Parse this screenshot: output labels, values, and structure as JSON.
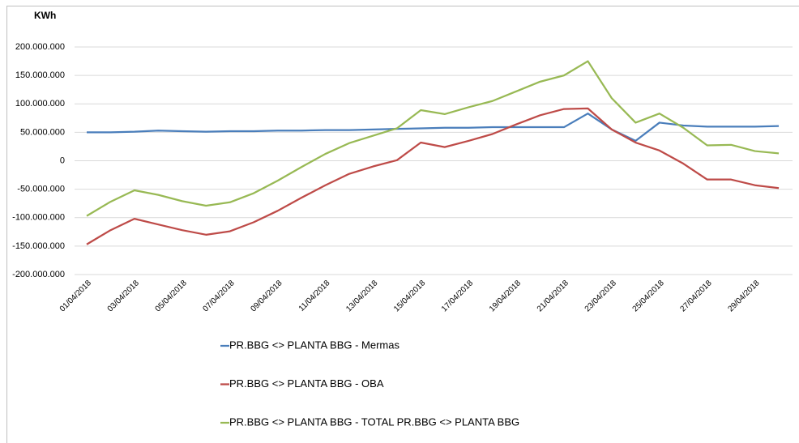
{
  "chart_data": {
    "type": "line",
    "y_label": "KWh",
    "categories": [
      "01/04/2018",
      null,
      "03/04/2018",
      null,
      "05/04/2018",
      null,
      "07/04/2018",
      null,
      "09/04/2018",
      null,
      "11/04/2018",
      null,
      "13/04/2018",
      null,
      "15/04/2018",
      null,
      "17/04/2018",
      null,
      "19/04/2018",
      null,
      "21/04/2018",
      null,
      "23/04/2018",
      null,
      "25/04/2018",
      null,
      "27/04/2018",
      null,
      "29/04/2018",
      null
    ],
    "series": [
      {
        "name": "PR.BBG <> PLANTA BBG - Mermas",
        "color": "#4a7ebb",
        "values": [
          50000000,
          50000000,
          51000000,
          53000000,
          52000000,
          51000000,
          52000000,
          52000000,
          53000000,
          53000000,
          54000000,
          54000000,
          55000000,
          56000000,
          57000000,
          58000000,
          58000000,
          59000000,
          59000000,
          59000000,
          59000000,
          83000000,
          55000000,
          35000000,
          67000000,
          62000000,
          60000000,
          60000000,
          60000000,
          61000000
        ]
      },
      {
        "name": "PR.BBG <> PLANTA BBG - OBA",
        "color": "#be4b48",
        "values": [
          -147000000,
          -122000000,
          -102000000,
          -112000000,
          -122000000,
          -130000000,
          -124000000,
          -108000000,
          -88000000,
          -65000000,
          -43000000,
          -23000000,
          -10000000,
          1000000,
          32000000,
          24000000,
          35000000,
          47000000,
          64000000,
          80000000,
          91000000,
          92000000,
          55000000,
          32000000,
          18000000,
          -5000000,
          -33000000,
          -33000000,
          -43000000,
          -48000000
        ]
      },
      {
        "name": "PR.BBG <> PLANTA BBG - TOTAL PR.BBG <> PLANTA BBG",
        "color": "#98b954",
        "values": [
          -97000000,
          -72000000,
          -52000000,
          -60000000,
          -71000000,
          -79000000,
          -73000000,
          -57000000,
          -35000000,
          -11000000,
          12000000,
          31000000,
          44000000,
          57000000,
          89000000,
          82000000,
          94000000,
          105000000,
          122000000,
          139000000,
          150000000,
          175000000,
          110000000,
          67000000,
          83000000,
          58000000,
          27000000,
          28000000,
          17000000,
          13000000
        ]
      }
    ],
    "ylim": [
      -200000000,
      200000000
    ],
    "yticks": [
      {
        "value": -200000000,
        "label": "-200.000.000"
      },
      {
        "value": -150000000,
        "label": "-150.000.000"
      },
      {
        "value": -100000000,
        "label": "-100.000.000"
      },
      {
        "value": -50000000,
        "label": "-50.000.000"
      },
      0,
      {
        "value": 50000000,
        "label": "50.000.000"
      },
      {
        "value": 100000000,
        "label": "100.000.000"
      },
      {
        "value": 150000000,
        "label": "150.000.000"
      },
      {
        "value": 200000000,
        "label": "200.000.000"
      }
    ],
    "grid": true
  }
}
